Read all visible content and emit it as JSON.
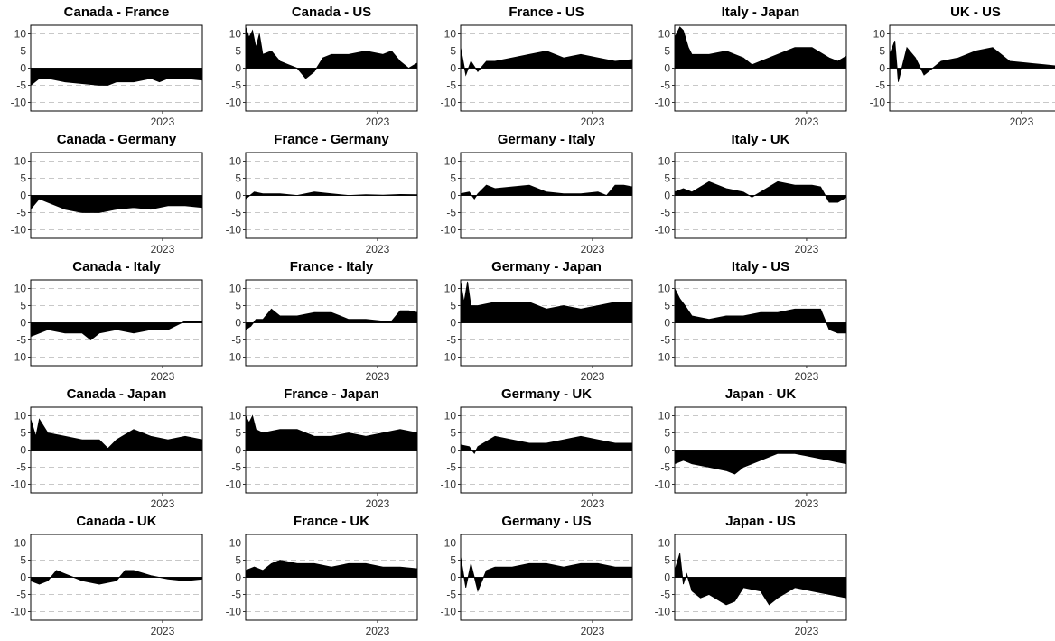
{
  "chart_data": {
    "type": "area",
    "x_tick_label": "2023",
    "yticks": [
      10,
      5,
      0,
      -5,
      -10
    ],
    "ylim": [
      -12.5,
      12.5
    ],
    "grid": "horizontal dashed",
    "fill_color": "#000000",
    "panels": [
      {
        "title": "Canada - France",
        "row": 0,
        "col": 0,
        "x": [
          0,
          0.05,
          0.1,
          0.2,
          0.3,
          0.4,
          0.45,
          0.5,
          0.6,
          0.7,
          0.75,
          0.8,
          0.9,
          1
        ],
        "y": [
          -5,
          -3,
          -3,
          -4,
          -4.5,
          -5,
          -5,
          -4,
          -4,
          -3,
          -4,
          -3,
          -3,
          -3.5
        ]
      },
      {
        "title": "Canada - US",
        "row": 0,
        "col": 1,
        "x": [
          0,
          0.02,
          0.04,
          0.06,
          0.08,
          0.1,
          0.15,
          0.2,
          0.25,
          0.3,
          0.35,
          0.4,
          0.45,
          0.5,
          0.6,
          0.7,
          0.8,
          0.85,
          0.9,
          0.95,
          1
        ],
        "y": [
          12,
          9,
          11,
          6,
          10,
          4,
          5,
          2,
          1,
          0,
          -3,
          -1,
          3,
          4,
          4,
          5,
          4,
          5,
          2,
          0,
          1.5
        ]
      },
      {
        "title": "France - US",
        "row": 0,
        "col": 2,
        "x": [
          0,
          0.03,
          0.06,
          0.1,
          0.15,
          0.2,
          0.3,
          0.4,
          0.5,
          0.6,
          0.7,
          0.8,
          0.9,
          1
        ],
        "y": [
          6,
          -2,
          2,
          -1,
          2,
          2,
          3,
          4,
          5,
          3,
          4,
          3,
          2,
          2.5
        ]
      },
      {
        "title": "Italy - Japan",
        "row": 0,
        "col": 3,
        "x": [
          0,
          0.03,
          0.05,
          0.08,
          0.1,
          0.2,
          0.3,
          0.4,
          0.45,
          0.5,
          0.6,
          0.7,
          0.8,
          0.9,
          0.95,
          1
        ],
        "y": [
          9,
          12,
          11,
          6,
          4,
          4,
          5,
          3,
          1,
          2,
          4,
          6,
          6,
          3,
          2,
          3.5
        ]
      },
      {
        "title": "UK - US",
        "row": 0,
        "col": 4,
        "x": [
          0,
          0.03,
          0.05,
          0.1,
          0.15,
          0.2,
          0.3,
          0.4,
          0.5,
          0.6,
          0.7,
          0.8,
          0.9,
          1
        ],
        "y": [
          4,
          8,
          -4,
          6,
          3,
          -2,
          2,
          3,
          5,
          6,
          2,
          1.5,
          1,
          0.5
        ]
      },
      {
        "title": "Canada - Germany",
        "row": 1,
        "col": 0,
        "x": [
          0,
          0.05,
          0.1,
          0.2,
          0.3,
          0.4,
          0.5,
          0.6,
          0.7,
          0.8,
          0.9,
          1
        ],
        "y": [
          -4,
          -1,
          -2,
          -4,
          -5,
          -5,
          -4,
          -3.5,
          -4,
          -3,
          -3,
          -3.5
        ]
      },
      {
        "title": "France - Germany",
        "row": 1,
        "col": 1,
        "x": [
          0,
          0.05,
          0.1,
          0.2,
          0.3,
          0.4,
          0.5,
          0.6,
          0.7,
          0.8,
          0.9,
          1
        ],
        "y": [
          -1,
          1,
          0.5,
          0.5,
          0,
          1,
          0.5,
          0,
          0.2,
          0.1,
          0.3,
          0.2
        ]
      },
      {
        "title": "Germany - Italy",
        "row": 1,
        "col": 2,
        "x": [
          0,
          0.05,
          0.08,
          0.1,
          0.15,
          0.2,
          0.3,
          0.4,
          0.5,
          0.6,
          0.7,
          0.8,
          0.85,
          0.9,
          0.95,
          1
        ],
        "y": [
          0.5,
          1,
          -1,
          0.5,
          3,
          2,
          2.5,
          3,
          1,
          0.5,
          0.5,
          1,
          0,
          3,
          3,
          2.5
        ]
      },
      {
        "title": "Italy - UK",
        "row": 1,
        "col": 3,
        "x": [
          0,
          0.05,
          0.1,
          0.2,
          0.25,
          0.3,
          0.4,
          0.45,
          0.5,
          0.6,
          0.7,
          0.8,
          0.85,
          0.9,
          0.95,
          1
        ],
        "y": [
          1,
          2,
          1,
          4,
          3,
          2,
          1,
          -0.5,
          1,
          4,
          3,
          3,
          2.5,
          -2,
          -2,
          -0.5
        ]
      },
      {
        "title": "Canada - Italy",
        "row": 2,
        "col": 0,
        "x": [
          0,
          0.05,
          0.1,
          0.2,
          0.3,
          0.35,
          0.4,
          0.5,
          0.6,
          0.7,
          0.8,
          0.9,
          1
        ],
        "y": [
          -4,
          -3,
          -2,
          -3,
          -3,
          -5,
          -3,
          -2,
          -3,
          -2,
          -2,
          0.5,
          0.5
        ]
      },
      {
        "title": "France - Italy",
        "row": 2,
        "col": 1,
        "x": [
          0,
          0.03,
          0.06,
          0.1,
          0.15,
          0.2,
          0.3,
          0.4,
          0.5,
          0.6,
          0.7,
          0.8,
          0.85,
          0.9,
          0.95,
          1
        ],
        "y": [
          -2,
          -1,
          1,
          1,
          4,
          2,
          2,
          3,
          3,
          1,
          1,
          0.5,
          0.5,
          3.5,
          3.5,
          3
        ]
      },
      {
        "title": "Germany - Japan",
        "row": 2,
        "col": 2,
        "x": [
          0,
          0.02,
          0.04,
          0.06,
          0.1,
          0.2,
          0.3,
          0.4,
          0.5,
          0.6,
          0.7,
          0.8,
          0.9,
          1
        ],
        "y": [
          12,
          6,
          12,
          5,
          5,
          6,
          6,
          6,
          4,
          5,
          4,
          5,
          6,
          6
        ]
      },
      {
        "title": "Italy - US",
        "row": 2,
        "col": 3,
        "x": [
          0,
          0.03,
          0.06,
          0.1,
          0.2,
          0.3,
          0.4,
          0.5,
          0.6,
          0.7,
          0.8,
          0.85,
          0.9,
          0.95,
          1
        ],
        "y": [
          10,
          7,
          5,
          2,
          1,
          2,
          2,
          3,
          3,
          4,
          4,
          4,
          -2,
          -3,
          -3
        ]
      },
      {
        "title": "Canada - Japan",
        "row": 3,
        "col": 0,
        "x": [
          0,
          0.03,
          0.05,
          0.1,
          0.2,
          0.3,
          0.4,
          0.45,
          0.5,
          0.6,
          0.7,
          0.8,
          0.9,
          1
        ],
        "y": [
          9,
          4,
          9,
          5,
          4,
          3,
          3,
          0.5,
          3,
          6,
          4,
          3,
          4,
          3
        ]
      },
      {
        "title": "France - Japan",
        "row": 3,
        "col": 1,
        "x": [
          0,
          0.02,
          0.04,
          0.06,
          0.1,
          0.2,
          0.3,
          0.4,
          0.5,
          0.6,
          0.7,
          0.8,
          0.9,
          1
        ],
        "y": [
          10,
          8,
          10,
          6,
          5,
          6,
          6,
          4,
          4,
          5,
          4,
          5,
          6,
          5
        ]
      },
      {
        "title": "Germany - UK",
        "row": 3,
        "col": 2,
        "x": [
          0,
          0.05,
          0.08,
          0.1,
          0.2,
          0.3,
          0.4,
          0.5,
          0.6,
          0.7,
          0.8,
          0.9,
          1
        ],
        "y": [
          1.5,
          1,
          -1,
          1,
          4,
          3,
          2,
          2,
          3,
          4,
          3,
          2,
          2
        ]
      },
      {
        "title": "Japan - UK",
        "row": 3,
        "col": 3,
        "x": [
          0,
          0.05,
          0.1,
          0.2,
          0.3,
          0.35,
          0.4,
          0.5,
          0.6,
          0.7,
          0.8,
          0.9,
          1
        ],
        "y": [
          -4,
          -3,
          -4,
          -5,
          -6,
          -7,
          -5,
          -3,
          -1,
          -1,
          -2,
          -3,
          -4
        ]
      },
      {
        "title": "Canada - UK",
        "row": 4,
        "col": 0,
        "x": [
          0,
          0.05,
          0.1,
          0.15,
          0.2,
          0.3,
          0.4,
          0.5,
          0.55,
          0.6,
          0.7,
          0.8,
          0.9,
          1
        ],
        "y": [
          -1,
          -2,
          -1,
          2,
          1,
          -1,
          -2,
          -1,
          2,
          2,
          0.5,
          -0.5,
          -1,
          -0.5
        ]
      },
      {
        "title": "France - UK",
        "row": 4,
        "col": 1,
        "x": [
          0,
          0.05,
          0.1,
          0.15,
          0.2,
          0.3,
          0.4,
          0.5,
          0.6,
          0.7,
          0.8,
          0.9,
          1
        ],
        "y": [
          2,
          3,
          2,
          4,
          5,
          4,
          4,
          3,
          4,
          4,
          3,
          3,
          2.5
        ]
      },
      {
        "title": "Germany - US",
        "row": 4,
        "col": 2,
        "x": [
          0,
          0.03,
          0.06,
          0.1,
          0.15,
          0.2,
          0.3,
          0.4,
          0.5,
          0.6,
          0.7,
          0.8,
          0.9,
          1
        ],
        "y": [
          6,
          -3,
          4,
          -4,
          2,
          3,
          3,
          4,
          4,
          3,
          4,
          4,
          3,
          3
        ]
      },
      {
        "title": "Japan - US",
        "row": 4,
        "col": 3,
        "x": [
          0,
          0.03,
          0.05,
          0.07,
          0.1,
          0.15,
          0.2,
          0.3,
          0.35,
          0.4,
          0.5,
          0.55,
          0.6,
          0.7,
          0.8,
          0.9,
          1
        ],
        "y": [
          2,
          7,
          -2,
          1,
          -4,
          -6,
          -5,
          -8,
          -7,
          -3,
          -4,
          -8,
          -6,
          -3,
          -4,
          -5,
          -6
        ]
      }
    ]
  }
}
